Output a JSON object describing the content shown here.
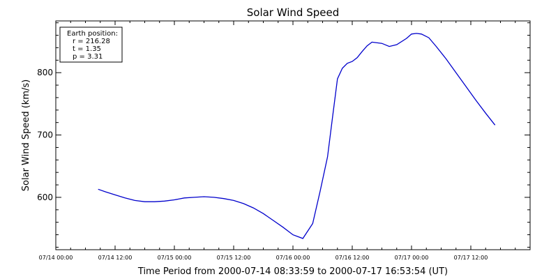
{
  "chart_data": {
    "type": "line",
    "title": "Solar Wind Speed",
    "xlabel": "Time Period from 2000-07-14 08:33:59 to 2000-07-17 16:53:54 (UT)",
    "ylabel": "Solar Wind Speed (km/s)",
    "x_ticks": [
      "07/14 00:00",
      "07/14 12:00",
      "07/15 00:00",
      "07/15 12:00",
      "07/16 00:00",
      "07/16 12:00",
      "07/17 00:00",
      "07/17 12:00"
    ],
    "x_tick_hours": [
      0,
      12,
      24,
      36,
      48,
      60,
      72,
      84
    ],
    "x_range_hours": [
      0,
      96
    ],
    "y_ticks": [
      600,
      700,
      800
    ],
    "ylim": [
      516,
      883
    ],
    "grid": false,
    "legend": {
      "placement": "top-left",
      "heading": "Earth position:",
      "lines": [
        "r = 216.28",
        "t = 1.35",
        "p = 3.31"
      ]
    },
    "series": [
      {
        "color": "#0000cc",
        "x_hours": [
          8.57,
          10,
          12,
          14,
          16,
          18,
          20,
          22,
          24,
          26,
          28,
          30,
          32,
          34,
          36,
          38,
          40,
          42,
          44,
          46,
          48,
          50,
          52,
          53.5,
          55,
          56,
          57,
          58,
          59,
          60,
          61,
          62,
          63,
          64,
          66,
          67.5,
          69,
          71,
          72,
          73,
          74,
          75.5,
          77,
          79,
          81,
          83,
          85,
          87,
          88.9
        ],
        "values": [
          613,
          609,
          604,
          599,
          595,
          593,
          593,
          594,
          596,
          599,
          600,
          601,
          600,
          598,
          595,
          590,
          583,
          574,
          563,
          552,
          540,
          534,
          558,
          610,
          665,
          728,
          790,
          807,
          815,
          818,
          824,
          834,
          843,
          849,
          847,
          842,
          845,
          855,
          862,
          863,
          862,
          856,
          842,
          822,
          800,
          778,
          756,
          735,
          716
        ]
      }
    ]
  }
}
